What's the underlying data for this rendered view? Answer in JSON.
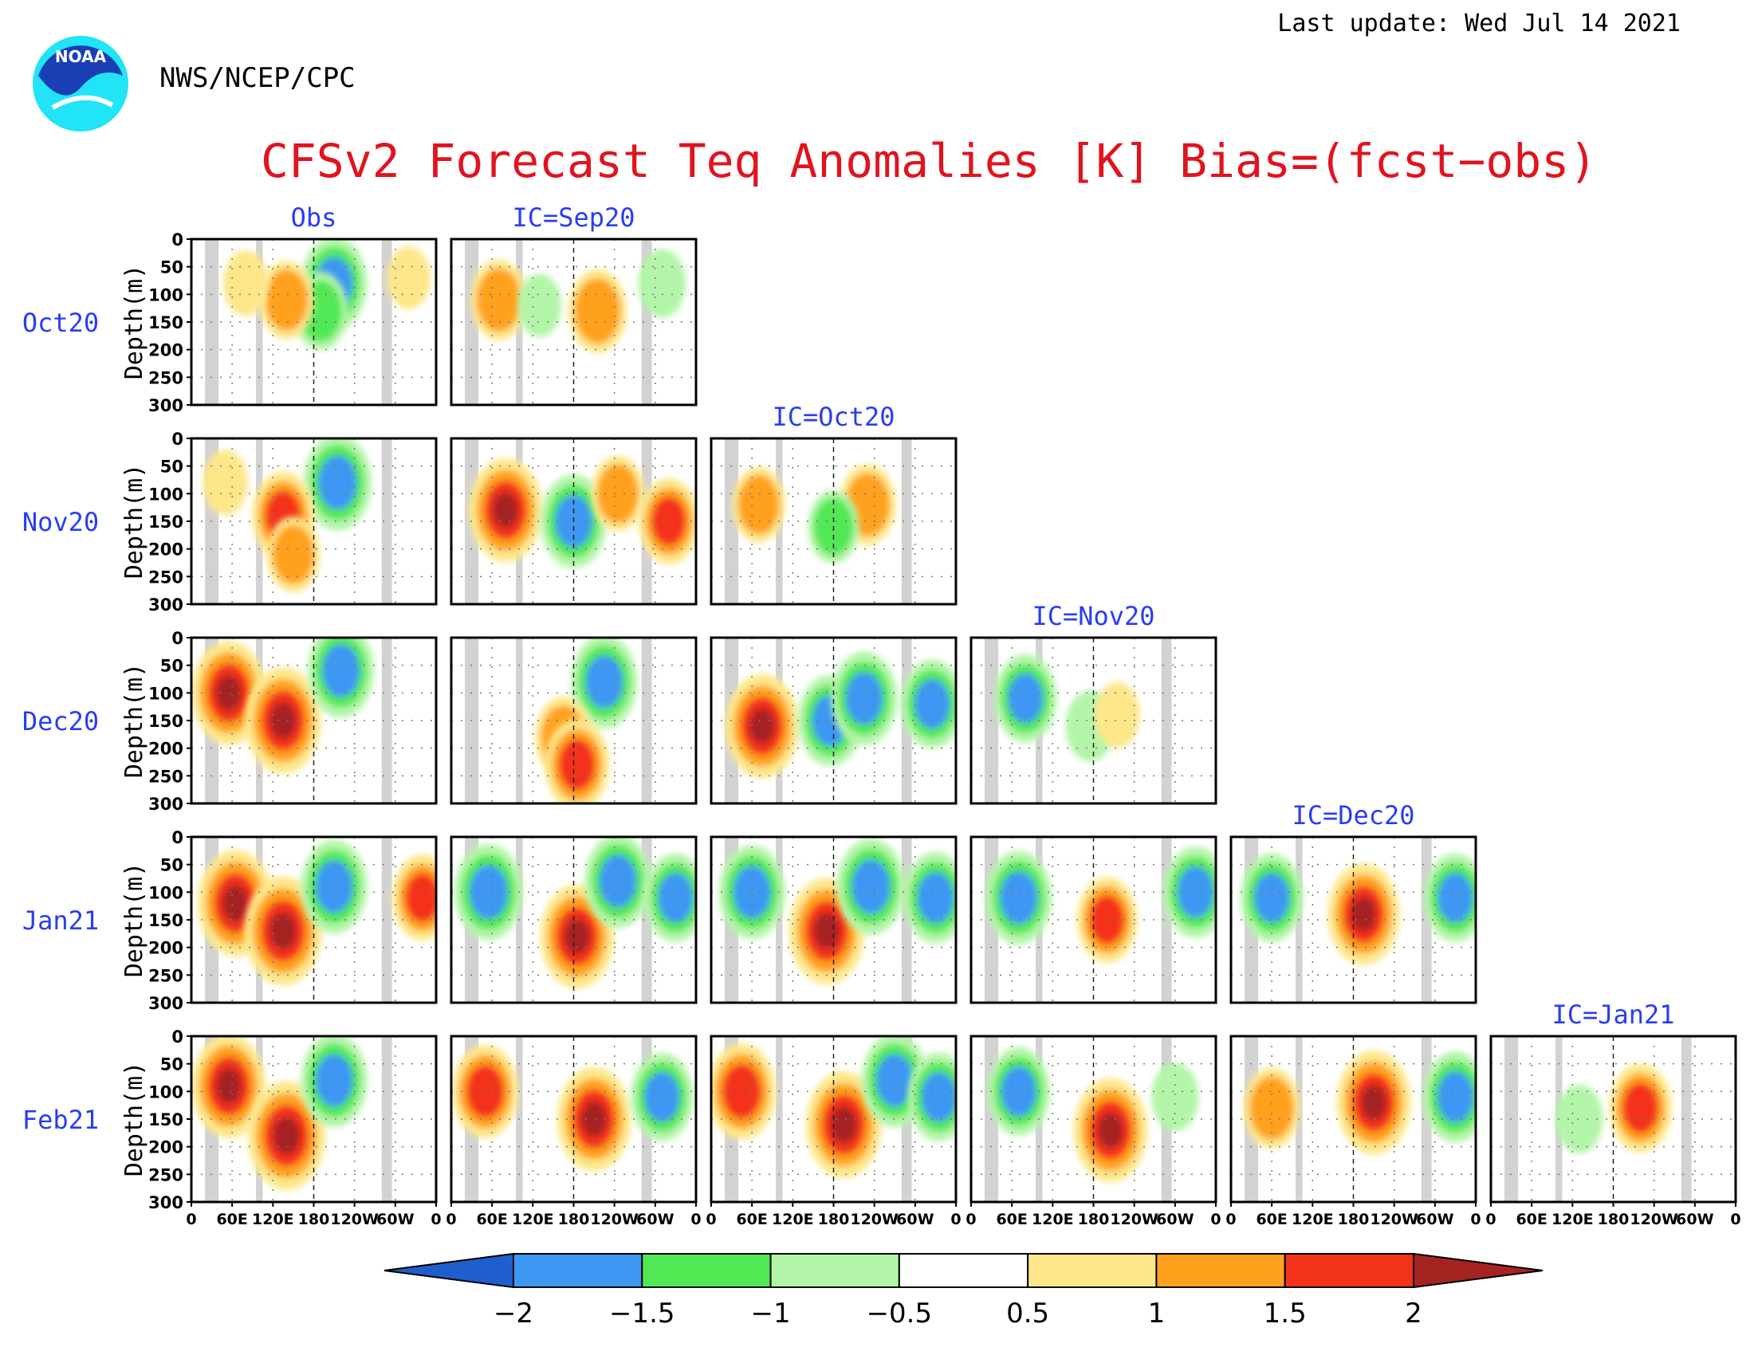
{
  "header": {
    "agency": "NWS/NCEP/CPC",
    "last_update": "Last update: Wed Jul 14 2021",
    "logo_text": "NOAA"
  },
  "title": "CFSv2 Forecast Teq Anomalies [K] Bias=(fcst−obs)",
  "colors": {
    "title": "#e0141e",
    "panel_labels": "#2a3df0",
    "land_mask": "#d2d2d2"
  },
  "chart_data": {
    "type": "heatmap",
    "layout": "lower-triangular grid of depth-longitude sections",
    "columns": [
      "Obs",
      "IC=Sep20",
      "IC=Oct20",
      "IC=Nov20",
      "IC=Dec20",
      "IC=Jan21"
    ],
    "rows": [
      "Oct20",
      "Nov20",
      "Dec20",
      "Jan21",
      "Feb21"
    ],
    "panels_per_row": [
      2,
      3,
      4,
      5,
      6
    ],
    "xlabel": "",
    "ylabel": "Depth(m)",
    "x_ticks": [
      "0",
      "60E",
      "120E",
      "180",
      "120W",
      "60W",
      "0"
    ],
    "xlim_degE": [
      0,
      360
    ],
    "y_ticks": [
      "0",
      "50",
      "100",
      "150",
      "200",
      "250",
      "300"
    ],
    "ylim_m": [
      300,
      0
    ],
    "land_mask_lon_bands_degE": [
      [
        20,
        40
      ],
      [
        95,
        105
      ],
      [
        280,
        295
      ]
    ],
    "colorbar": {
      "ticks": [
        "−2",
        "−1.5",
        "−1",
        "−0.5",
        "0.5",
        "1",
        "1.5",
        "2"
      ],
      "bins": [
        {
          "range": "< -2",
          "color": "#1e5fcd"
        },
        {
          "range": "-2 to -1.5",
          "color": "#3c97f3"
        },
        {
          "range": "-1.5 to -1",
          "color": "#52e854"
        },
        {
          "range": "-1 to -0.5",
          "color": "#b3f5a8"
        },
        {
          "range": "-0.5 to 0.5",
          "color": "#ffffff"
        },
        {
          "range": "0.5 to 1",
          "color": "#fde78a"
        },
        {
          "range": "1 to 1.5",
          "color": "#ffa11c"
        },
        {
          "range": "1.5 to 2",
          "color": "#f4331c"
        },
        {
          "range": "> 2",
          "color": "#a52421"
        }
      ]
    },
    "anomaly_features": [
      {
        "row": "Oct20",
        "col": "Obs",
        "blobs": [
          {
            "lon": 210,
            "depth": 80,
            "value": -1.8
          },
          {
            "lon": 190,
            "depth": 130,
            "value": -1.2
          },
          {
            "lon": 140,
            "depth": 110,
            "value": 1.2
          },
          {
            "lon": 80,
            "depth": 80,
            "value": 0.7
          },
          {
            "lon": 320,
            "depth": 70,
            "value": 0.6
          }
        ]
      },
      {
        "row": "Oct20",
        "col": "IC=Sep20",
        "blobs": [
          {
            "lon": 70,
            "depth": 110,
            "value": 1.3
          },
          {
            "lon": 215,
            "depth": 130,
            "value": 1.4
          },
          {
            "lon": 310,
            "depth": 80,
            "value": -0.8
          },
          {
            "lon": 130,
            "depth": 120,
            "value": -0.6
          }
        ]
      },
      {
        "row": "Nov20",
        "col": "Obs",
        "blobs": [
          {
            "lon": 215,
            "depth": 80,
            "value": -1.9
          },
          {
            "lon": 135,
            "depth": 140,
            "value": 1.6
          },
          {
            "lon": 150,
            "depth": 210,
            "value": 1.1
          },
          {
            "lon": 50,
            "depth": 80,
            "value": 0.7
          }
        ]
      },
      {
        "row": "Nov20",
        "col": "IC=Sep20",
        "blobs": [
          {
            "lon": 80,
            "depth": 130,
            "value": 2.2
          },
          {
            "lon": 180,
            "depth": 150,
            "value": -1.8
          },
          {
            "lon": 245,
            "depth": 100,
            "value": 1.1
          },
          {
            "lon": 320,
            "depth": 150,
            "value": 1.5
          }
        ]
      },
      {
        "row": "Nov20",
        "col": "IC=Oct20",
        "blobs": [
          {
            "lon": 70,
            "depth": 120,
            "value": 1.1
          },
          {
            "lon": 230,
            "depth": 120,
            "value": 1.3
          },
          {
            "lon": 180,
            "depth": 160,
            "value": -1.0
          }
        ]
      },
      {
        "row": "Dec20",
        "col": "Obs",
        "blobs": [
          {
            "lon": 55,
            "depth": 100,
            "value": 2.2
          },
          {
            "lon": 135,
            "depth": 150,
            "value": 2.3
          },
          {
            "lon": 220,
            "depth": 60,
            "value": -1.8
          }
        ]
      },
      {
        "row": "Dec20",
        "col": "IC=Sep20",
        "blobs": [
          {
            "lon": 225,
            "depth": 80,
            "value": -1.8
          },
          {
            "lon": 165,
            "depth": 180,
            "value": 1.3
          },
          {
            "lon": 185,
            "depth": 230,
            "value": 1.7
          }
        ]
      },
      {
        "row": "Dec20",
        "col": "IC=Oct20",
        "blobs": [
          {
            "lon": 75,
            "depth": 160,
            "value": 2.2
          },
          {
            "lon": 175,
            "depth": 150,
            "value": -1.7
          },
          {
            "lon": 225,
            "depth": 110,
            "value": -1.8
          },
          {
            "lon": 325,
            "depth": 120,
            "value": -1.6
          }
        ]
      },
      {
        "row": "Dec20",
        "col": "IC=Nov20",
        "blobs": [
          {
            "lon": 80,
            "depth": 110,
            "value": -1.6
          },
          {
            "lon": 175,
            "depth": 160,
            "value": -0.9
          },
          {
            "lon": 215,
            "depth": 140,
            "value": 0.7
          }
        ]
      },
      {
        "row": "Jan21",
        "col": "Obs",
        "blobs": [
          {
            "lon": 65,
            "depth": 120,
            "value": 2.3
          },
          {
            "lon": 135,
            "depth": 170,
            "value": 2.4
          },
          {
            "lon": 210,
            "depth": 90,
            "value": -1.8
          },
          {
            "lon": 340,
            "depth": 110,
            "value": 1.5
          }
        ]
      },
      {
        "row": "Jan21",
        "col": "IC=Sep20",
        "blobs": [
          {
            "lon": 55,
            "depth": 100,
            "value": -1.9
          },
          {
            "lon": 185,
            "depth": 180,
            "value": 2.2
          },
          {
            "lon": 245,
            "depth": 80,
            "value": -1.8
          },
          {
            "lon": 330,
            "depth": 110,
            "value": -1.6
          }
        ]
      },
      {
        "row": "Jan21",
        "col": "IC=Oct20",
        "blobs": [
          {
            "lon": 60,
            "depth": 100,
            "value": -1.8
          },
          {
            "lon": 170,
            "depth": 170,
            "value": 2.3
          },
          {
            "lon": 235,
            "depth": 90,
            "value": -1.9
          },
          {
            "lon": 330,
            "depth": 110,
            "value": -1.7
          }
        ]
      },
      {
        "row": "Jan21",
        "col": "IC=Nov20",
        "blobs": [
          {
            "lon": 70,
            "depth": 110,
            "value": -1.8
          },
          {
            "lon": 200,
            "depth": 150,
            "value": 1.5
          },
          {
            "lon": 330,
            "depth": 100,
            "value": -1.7
          }
        ]
      },
      {
        "row": "Jan21",
        "col": "IC=Dec20",
        "blobs": [
          {
            "lon": 60,
            "depth": 110,
            "value": -1.6
          },
          {
            "lon": 195,
            "depth": 140,
            "value": 2.1
          },
          {
            "lon": 330,
            "depth": 110,
            "value": -1.6
          }
        ]
      },
      {
        "row": "Feb21",
        "col": "Obs",
        "blobs": [
          {
            "lon": 55,
            "depth": 90,
            "value": 2.2
          },
          {
            "lon": 140,
            "depth": 180,
            "value": 2.4
          },
          {
            "lon": 210,
            "depth": 80,
            "value": -1.8
          }
        ]
      },
      {
        "row": "Feb21",
        "col": "IC=Sep20",
        "blobs": [
          {
            "lon": 50,
            "depth": 100,
            "value": 1.8
          },
          {
            "lon": 210,
            "depth": 150,
            "value": 2.2
          },
          {
            "lon": 310,
            "depth": 110,
            "value": -1.6
          }
        ]
      },
      {
        "row": "Feb21",
        "col": "IC=Oct20",
        "blobs": [
          {
            "lon": 45,
            "depth": 100,
            "value": 1.9
          },
          {
            "lon": 195,
            "depth": 160,
            "value": 2.3
          },
          {
            "lon": 270,
            "depth": 80,
            "value": -1.8
          },
          {
            "lon": 335,
            "depth": 110,
            "value": -1.6
          }
        ]
      },
      {
        "row": "Feb21",
        "col": "IC=Nov20",
        "blobs": [
          {
            "lon": 70,
            "depth": 100,
            "value": -1.6
          },
          {
            "lon": 205,
            "depth": 170,
            "value": 2.2
          },
          {
            "lon": 300,
            "depth": 110,
            "value": -0.8
          }
        ]
      },
      {
        "row": "Feb21",
        "col": "IC=Dec20",
        "blobs": [
          {
            "lon": 60,
            "depth": 130,
            "value": 1.3
          },
          {
            "lon": 210,
            "depth": 120,
            "value": 2.2
          },
          {
            "lon": 330,
            "depth": 110,
            "value": -1.7
          }
        ]
      },
      {
        "row": "Feb21",
        "col": "IC=Jan21",
        "blobs": [
          {
            "lon": 220,
            "depth": 130,
            "value": 1.6
          },
          {
            "lon": 130,
            "depth": 150,
            "value": -0.8
          }
        ]
      }
    ]
  }
}
